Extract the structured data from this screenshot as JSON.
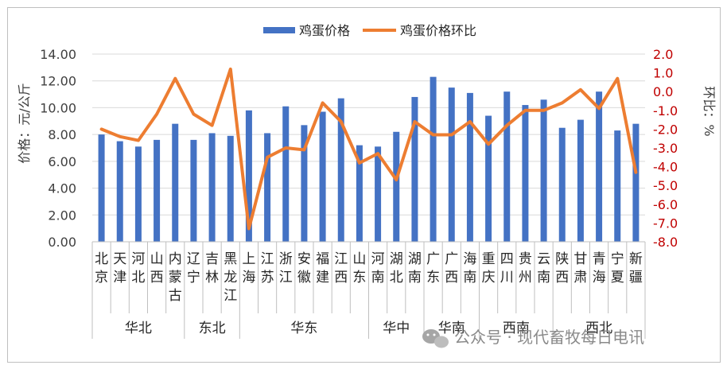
{
  "chart_data": {
    "type": "bar+line",
    "categories": [
      [
        "北",
        "京"
      ],
      [
        "天",
        "津"
      ],
      [
        "河",
        "北"
      ],
      [
        "山",
        "西"
      ],
      [
        "内",
        "蒙",
        "古"
      ],
      [
        "辽",
        "宁"
      ],
      [
        "吉",
        "林"
      ],
      [
        "黑",
        "龙",
        "江"
      ],
      [
        "上",
        "海"
      ],
      [
        "江",
        "苏"
      ],
      [
        "浙",
        "江"
      ],
      [
        "安",
        "徽"
      ],
      [
        "福",
        "建"
      ],
      [
        "江",
        "西"
      ],
      [
        "山",
        "东"
      ],
      [
        "河",
        "南"
      ],
      [
        "湖",
        "北"
      ],
      [
        "湖",
        "南"
      ],
      [
        "广",
        "东"
      ],
      [
        "广",
        "西"
      ],
      [
        "海",
        "南"
      ],
      [
        "重",
        "庆"
      ],
      [
        "四",
        "川"
      ],
      [
        "贵",
        "州"
      ],
      [
        "云",
        "南"
      ],
      [
        "陕",
        "西"
      ],
      [
        "甘",
        "肃"
      ],
      [
        "青",
        "海"
      ],
      [
        "宁",
        "夏"
      ],
      [
        "新",
        "疆"
      ]
    ],
    "regions": [
      {
        "name": "华北",
        "count": 5
      },
      {
        "name": "东北",
        "count": 3
      },
      {
        "name": "华东",
        "count": 7
      },
      {
        "name": "华中",
        "count": 3
      },
      {
        "name": "华南",
        "count": 3
      },
      {
        "name": "西南",
        "count": 4
      },
      {
        "name": "西北",
        "count": 5
      }
    ],
    "series": [
      {
        "name": "鸡蛋价格",
        "axis": "left",
        "type": "bar",
        "color": "#4472c4",
        "values": [
          8.0,
          7.5,
          7.1,
          7.6,
          8.8,
          7.6,
          8.1,
          7.9,
          9.8,
          8.1,
          10.1,
          8.7,
          9.7,
          10.7,
          7.2,
          7.1,
          8.2,
          10.8,
          12.3,
          11.5,
          11.1,
          9.4,
          11.2,
          10.2,
          10.6,
          8.5,
          9.1,
          11.2,
          8.3,
          8.8
        ]
      },
      {
        "name": "鸡蛋价格环比",
        "axis": "right",
        "type": "line",
        "color": "#ed7d31",
        "values": [
          -2.0,
          -2.4,
          -2.6,
          -1.2,
          0.7,
          -1.2,
          -1.8,
          1.2,
          -7.3,
          -3.5,
          -3.0,
          -3.1,
          -0.6,
          -1.6,
          -3.8,
          -3.3,
          -4.7,
          -1.6,
          -2.3,
          -2.3,
          -1.6,
          -2.8,
          -1.8,
          -1.0,
          -1.0,
          -0.6,
          0.1,
          -0.9,
          0.7,
          -4.3
        ]
      }
    ],
    "y_left": {
      "min": 0,
      "max": 14,
      "step": 2,
      "ticks": [
        "0.00",
        "2.00",
        "4.00",
        "6.00",
        "8.00",
        "10.00",
        "12.00",
        "14.00"
      ],
      "label": "价格：元/公斤"
    },
    "y_right": {
      "min": -8,
      "max": 2,
      "step": 1,
      "ticks": [
        "-8.0",
        "-7.0",
        "-6.0",
        "-5.0",
        "-4.0",
        "-3.0",
        "-2.0",
        "-1.0",
        "0.0",
        "1.0",
        "2.0"
      ],
      "label": "环比：%",
      "color": "#c00000"
    },
    "legend": {
      "position": "top-center",
      "items": [
        "鸡蛋价格",
        "鸡蛋价格环比"
      ]
    },
    "grid": true
  },
  "watermark": "公众号 · 现代畜牧每日电讯"
}
